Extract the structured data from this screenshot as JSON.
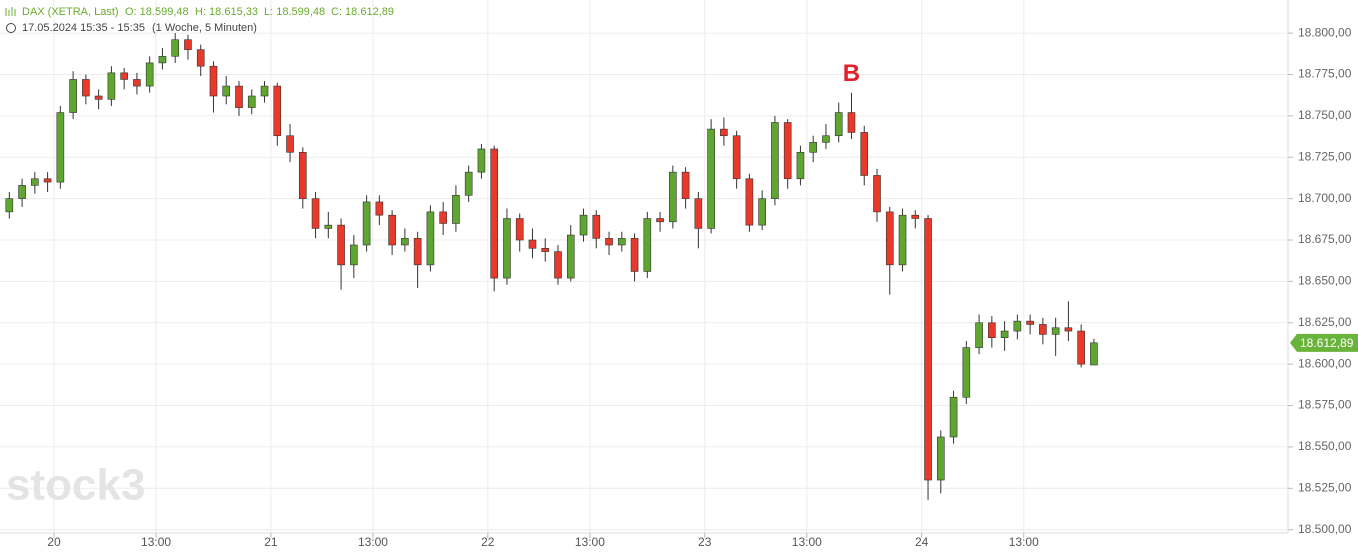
{
  "chart_data": {
    "type": "candlestick",
    "legend": {
      "symbol": "DAX (XETRA, Last)",
      "open": "O: 18.599,48",
      "high": "H: 18.615,33",
      "low": "L: 18.599,48",
      "close": "C: 18.612,89",
      "period": "17.05.2024 15:35 - 15:35",
      "interval": "(1 Woche, 5 Minuten)"
    },
    "annotation": "B",
    "watermark": "stock3",
    "up_color": "#5ea62f",
    "down_color": "#e8392b",
    "grid": true,
    "ylim": [
      18498,
      18820
    ],
    "xlim": [
      -0.23,
      100.71
    ],
    "yticks": [
      {
        "value": 18500,
        "label": "18.500,00"
      },
      {
        "value": 18525,
        "label": "18.525,00"
      },
      {
        "value": 18550,
        "label": "18.550,00"
      },
      {
        "value": 18575,
        "label": "18.575,00"
      },
      {
        "value": 18600,
        "label": "18.600,00"
      },
      {
        "value": 18625,
        "label": "18.625,00"
      },
      {
        "value": 18650,
        "label": "18.650,00"
      },
      {
        "value": 18675,
        "label": "18.675,00"
      },
      {
        "value": 18700,
        "label": "18.700,00"
      },
      {
        "value": 18725,
        "label": "18.725,00"
      },
      {
        "value": 18750,
        "label": "18.750,00"
      },
      {
        "value": 18775,
        "label": "18.775,00"
      },
      {
        "value": 18800,
        "label": "18.800,00"
      }
    ],
    "xticks": [
      {
        "value": 4,
        "label": "20"
      },
      {
        "value": 12,
        "label": "13:00"
      },
      {
        "value": 21,
        "label": "21"
      },
      {
        "value": 29,
        "label": "13:00"
      },
      {
        "value": 38,
        "label": "22"
      },
      {
        "value": 46,
        "label": "13:00"
      },
      {
        "value": 55,
        "label": "23"
      },
      {
        "value": 63,
        "label": "13:00"
      },
      {
        "value": 72,
        "label": "24"
      },
      {
        "value": 80,
        "label": "13:00"
      }
    ],
    "last_price": {
      "value": 18612.89,
      "label": "18.612,89"
    },
    "open": [
      18692,
      18700,
      18708,
      18712,
      18710,
      18752,
      18772,
      18762,
      18760,
      18776,
      18772,
      18768,
      18782,
      18786,
      18796,
      18790,
      18780,
      18762,
      18768,
      18755,
      18762,
      18768,
      18738,
      18728,
      18700,
      18682,
      18684,
      18660,
      18672,
      18698,
      18690,
      18672,
      18676,
      18660,
      18692,
      18685,
      18702,
      18716,
      18730,
      18652,
      18688,
      18675,
      18670,
      18668,
      18652,
      18678,
      18690,
      18676,
      18672,
      18676,
      18656,
      18688,
      18686,
      18716,
      18700,
      18682,
      18742,
      18738,
      18712,
      18684,
      18700,
      18746,
      18712,
      18728,
      18734,
      18738,
      18752,
      18740,
      18714,
      18692,
      18660,
      18690,
      18688,
      18530,
      18556,
      18580,
      18610,
      18625,
      18616,
      18620,
      18626,
      18624,
      18618,
      18622,
      18620,
      18599.48
    ],
    "high": [
      18704,
      18712,
      18716,
      18716,
      18756,
      18777,
      18775,
      18766,
      18780,
      18779,
      18776,
      18786,
      18791,
      18800,
      18799,
      18793,
      18783,
      18774,
      18771,
      18766,
      18771,
      18770,
      18745,
      18731,
      18704,
      18692,
      18688,
      18678,
      18702,
      18702,
      18693,
      18682,
      18680,
      18696,
      18698,
      18708,
      18720,
      18733,
      18732,
      18694,
      18691,
      18682,
      18676,
      18672,
      18684,
      18694,
      18693,
      18680,
      18680,
      18679,
      18692,
      18692,
      18720,
      18719,
      18704,
      18748,
      18749,
      18741,
      18715,
      18705,
      18750,
      18748,
      18732,
      18738,
      18745,
      18758,
      18764,
      18744,
      18718,
      18695,
      18694,
      18693,
      18690,
      18560,
      18584,
      18614,
      18630,
      18629,
      18626,
      18630,
      18630,
      18628,
      18628,
      18638,
      18624,
      18615.33
    ],
    "low": [
      18688,
      18695,
      18703,
      18704,
      18706,
      18748,
      18757,
      18754,
      18756,
      18766,
      18763,
      18764,
      18778,
      18782,
      18784,
      18774,
      18752,
      18757,
      18750,
      18751,
      18758,
      18732,
      18722,
      18694,
      18676,
      18676,
      18645,
      18652,
      18668,
      18684,
      18666,
      18668,
      18646,
      18656,
      18678,
      18680,
      18698,
      18712,
      18644,
      18648,
      18668,
      18664,
      18662,
      18648,
      18650,
      18674,
      18670,
      18666,
      18668,
      18650,
      18652,
      18680,
      18682,
      18694,
      18670,
      18679,
      18732,
      18706,
      18680,
      18681,
      18696,
      18706,
      18708,
      18722,
      18730,
      18734,
      18736,
      18708,
      18686,
      18642,
      18656,
      18682,
      18518,
      18522,
      18552,
      18576,
      18606,
      18610,
      18608,
      18615,
      18618,
      18612,
      18605,
      18614,
      18598,
      18599.48
    ],
    "close": [
      18700,
      18708,
      18712,
      18710,
      18752,
      18772,
      18762,
      18760,
      18776,
      18772,
      18768,
      18782,
      18786,
      18796,
      18790,
      18780,
      18762,
      18768,
      18755,
      18762,
      18768,
      18738,
      18728,
      18700,
      18682,
      18684,
      18660,
      18672,
      18698,
      18690,
      18672,
      18676,
      18660,
      18692,
      18685,
      18702,
      18716,
      18730,
      18652,
      18688,
      18675,
      18670,
      18668,
      18652,
      18678,
      18690,
      18676,
      18672,
      18676,
      18656,
      18688,
      18686,
      18716,
      18700,
      18682,
      18742,
      18738,
      18712,
      18684,
      18700,
      18746,
      18712,
      18728,
      18734,
      18738,
      18752,
      18740,
      18714,
      18692,
      18660,
      18690,
      18688,
      18530,
      18556,
      18580,
      18610,
      18625,
      18616,
      18620,
      18626,
      18624,
      18618,
      18622,
      18620,
      18600,
      18612.89
    ]
  }
}
